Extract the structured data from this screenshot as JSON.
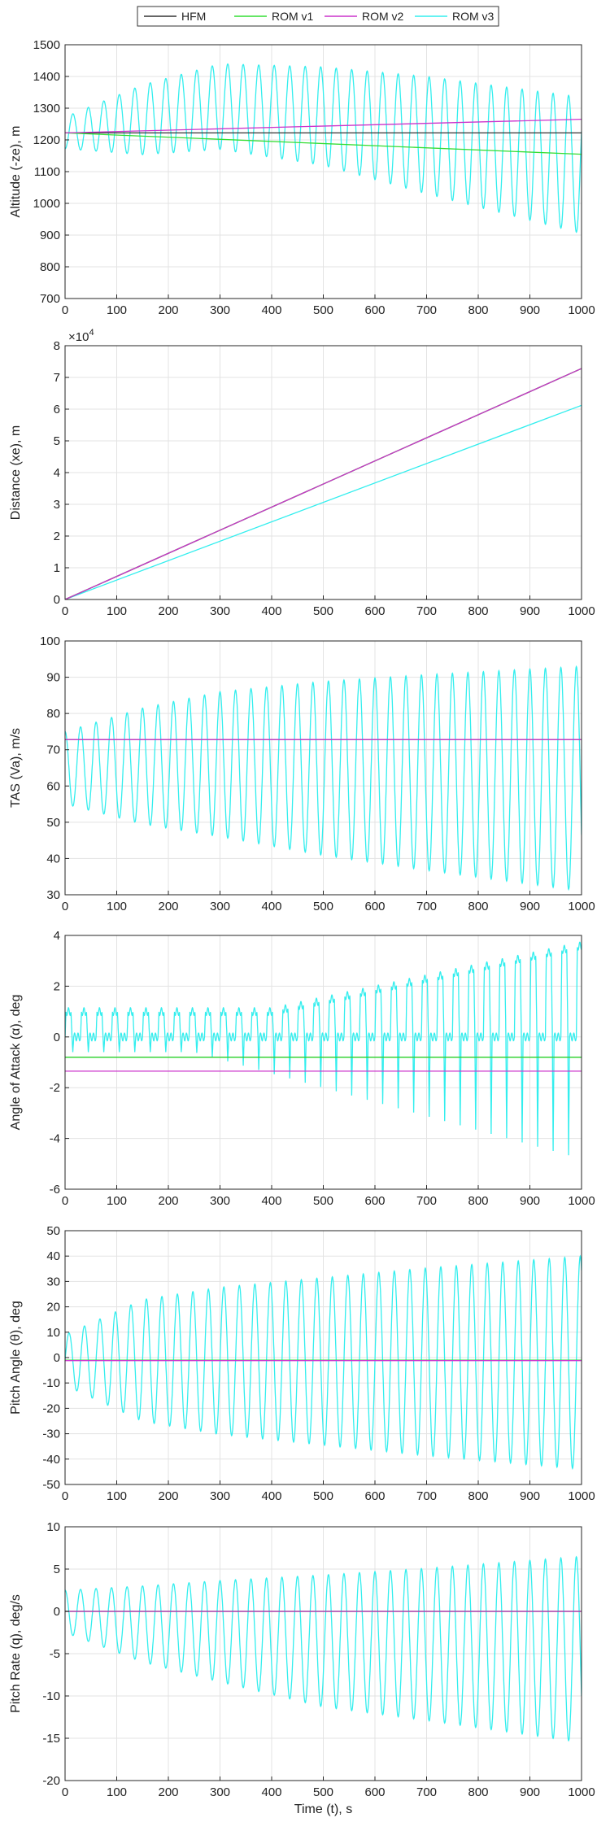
{
  "legend": {
    "entries": [
      {
        "name": "HFM",
        "color": "#333333"
      },
      {
        "name": "ROM v1",
        "color": "#33dd33"
      },
      {
        "name": "ROM v2",
        "color": "#cc33cc"
      },
      {
        "name": "ROM v3",
        "color": "#33eeee"
      }
    ],
    "placement": "top-center"
  },
  "colors": {
    "HFM": "#333333",
    "ROM v1": "#33dd33",
    "ROM v2": "#cc33cc",
    "ROM v3": "#33eeee"
  },
  "chart_data": [
    {
      "type": "line",
      "ylabel": "Altitude (-ze), m",
      "xlabel": "",
      "xlim": [
        0,
        1000
      ],
      "ylim": [
        700,
        1500
      ],
      "yticks": [
        700,
        800,
        900,
        1000,
        1100,
        1200,
        1300,
        1400,
        1500
      ],
      "grid": true,
      "series": [
        {
          "name": "HFM",
          "x": [
            0,
            1000
          ],
          "y": [
            1222,
            1222
          ]
        },
        {
          "name": "ROM v1",
          "x": [
            0,
            1000
          ],
          "y": [
            1222,
            1155
          ]
        },
        {
          "name": "ROM v2",
          "x": [
            0,
            1000
          ],
          "y": [
            1222,
            1265
          ]
        },
        {
          "name": "ROM v3",
          "generator": "oscillation",
          "period": 30,
          "phase": -0.25,
          "mean": [
            [
              0,
              1222
            ],
            [
              300,
              1305
            ],
            [
              500,
              1275
            ],
            [
              700,
              1215
            ],
            [
              1000,
              1120
            ]
          ],
          "amp": [
            [
              0,
              50
            ],
            [
              150,
              110
            ],
            [
              300,
              135
            ],
            [
              500,
              155
            ],
            [
              700,
              185
            ],
            [
              1000,
              215
            ]
          ]
        }
      ]
    },
    {
      "type": "line",
      "ylabel": "Distance (xe), m",
      "xlabel": "",
      "exponent": "×10^4",
      "xlim": [
        0,
        1000
      ],
      "ylim": [
        0,
        8
      ],
      "yticks": [
        0,
        1,
        2,
        3,
        4,
        5,
        6,
        7,
        8
      ],
      "grid": true,
      "series": [
        {
          "name": "HFM",
          "x": [
            0,
            1000
          ],
          "y": [
            0,
            7.28
          ]
        },
        {
          "name": "ROM v1",
          "x": [
            0,
            1000
          ],
          "y": [
            0,
            7.28
          ]
        },
        {
          "name": "ROM v2",
          "x": [
            0,
            1000
          ],
          "y": [
            0,
            7.28
          ]
        },
        {
          "name": "ROM v3",
          "x": [
            0,
            1000
          ],
          "y": [
            0,
            6.12
          ]
        }
      ]
    },
    {
      "type": "line",
      "ylabel": "TAS (Va), m/s",
      "xlabel": "",
      "xlim": [
        0,
        1000
      ],
      "ylim": [
        30,
        100
      ],
      "yticks": [
        30,
        40,
        50,
        60,
        70,
        80,
        90,
        100
      ],
      "grid": true,
      "series": [
        {
          "name": "HFM",
          "x": [
            0,
            1000
          ],
          "y": [
            72.8,
            72.8
          ]
        },
        {
          "name": "ROM v1",
          "x": [
            0,
            1000
          ],
          "y": [
            72.8,
            72.8
          ]
        },
        {
          "name": "ROM v2",
          "x": [
            0,
            1000
          ],
          "y": [
            72.8,
            72.8
          ]
        },
        {
          "name": "ROM v3",
          "generator": "oscillation",
          "period": 30,
          "phase": 0.25,
          "mean": [
            [
              0,
              65
            ],
            [
              300,
              66
            ],
            [
              1000,
              62
            ]
          ],
          "amp": [
            [
              0,
              10
            ],
            [
              150,
              16
            ],
            [
              300,
              20
            ],
            [
              500,
              24
            ],
            [
              700,
              27
            ],
            [
              1000,
              31
            ]
          ]
        }
      ]
    },
    {
      "type": "line",
      "ylabel": "Angle of Attack (α), deg",
      "xlabel": "",
      "xlim": [
        0,
        1000
      ],
      "ylim": [
        -6,
        4
      ],
      "yticks": [
        -6,
        -4,
        -2,
        0,
        2,
        4
      ],
      "grid": true,
      "series": [
        {
          "name": "HFM",
          "x": [
            0,
            1000
          ],
          "y": [
            -0.8,
            -0.8
          ]
        },
        {
          "name": "ROM v1",
          "x": [
            0,
            1000
          ],
          "y": [
            -0.8,
            -0.8
          ]
        },
        {
          "name": "ROM v2",
          "x": [
            0,
            1000
          ],
          "y": [
            -1.35,
            -1.35
          ]
        },
        {
          "name": "ROM v3",
          "generator": "aoa",
          "period": 30
        }
      ]
    },
    {
      "type": "line",
      "ylabel": "Pitch Angle (θ), deg",
      "xlabel": "",
      "xlim": [
        0,
        1000
      ],
      "ylim": [
        -50,
        50
      ],
      "yticks": [
        -50,
        -40,
        -30,
        -20,
        -10,
        0,
        10,
        20,
        30,
        40,
        50
      ],
      "grid": true,
      "series": [
        {
          "name": "HFM",
          "x": [
            0,
            1000
          ],
          "y": [
            -1,
            -1
          ]
        },
        {
          "name": "ROM v1",
          "x": [
            0,
            1000
          ],
          "y": [
            -1,
            -1
          ]
        },
        {
          "name": "ROM v2",
          "x": [
            0,
            1000
          ],
          "y": [
            -1.2,
            -1.2
          ]
        },
        {
          "name": "ROM v3",
          "generator": "oscillation",
          "period": 30,
          "phase": 0.0,
          "mean": [
            [
              0,
              -1
            ],
            [
              1000,
              -2
            ]
          ],
          "amp": [
            [
              0,
              10
            ],
            [
              150,
              24
            ],
            [
              300,
              29
            ],
            [
              500,
              33
            ],
            [
              700,
              37
            ],
            [
              1000,
              42
            ]
          ]
        }
      ]
    },
    {
      "type": "line",
      "ylabel": "Pitch Rate (q), deg/s",
      "xlabel": "Time (t), s",
      "xlim": [
        0,
        1000
      ],
      "ylim": [
        -20,
        10
      ],
      "yticks": [
        -20,
        -15,
        -10,
        -5,
        0,
        5,
        10
      ],
      "grid": true,
      "series": [
        {
          "name": "HFM",
          "x": [
            0,
            1000
          ],
          "y": [
            0,
            0
          ]
        },
        {
          "name": "ROM v1",
          "x": [
            0,
            1000
          ],
          "y": [
            0,
            0
          ]
        },
        {
          "name": "ROM v2",
          "x": [
            0,
            1000
          ],
          "y": [
            0,
            0
          ]
        },
        {
          "name": "ROM v3",
          "generator": "oscillation",
          "period": 30,
          "phase": 0.25,
          "mean": [
            [
              0,
              0
            ],
            [
              150,
              -1.5
            ],
            [
              500,
              -3.5
            ],
            [
              1000,
              -4.5
            ]
          ],
          "amp": [
            [
              0,
              2.5
            ],
            [
              150,
              4.5
            ],
            [
              300,
              6
            ],
            [
              500,
              7.8
            ],
            [
              700,
              9
            ],
            [
              1000,
              11
            ]
          ]
        }
      ]
    }
  ],
  "xticks": [
    0,
    100,
    200,
    300,
    400,
    500,
    600,
    700,
    800,
    900,
    1000
  ]
}
